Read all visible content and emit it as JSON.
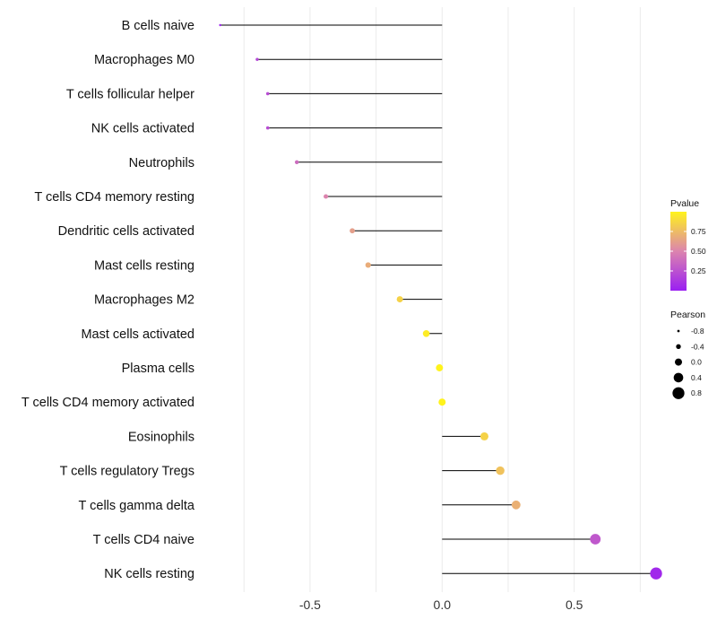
{
  "chart_data": {
    "type": "lollipop",
    "xlabel": "",
    "ylabel": "",
    "xlim": [
      -0.9,
      0.82
    ],
    "x_ticks": [
      -0.5,
      0.0,
      0.5
    ],
    "x_tick_labels": [
      "-0.5",
      "0.0",
      "0.5"
    ],
    "categories": [
      "B cells naive",
      "Macrophages M0",
      "T cells follicular helper",
      "NK cells activated",
      "Neutrophils",
      "T cells CD4 memory resting",
      "Dendritic cells activated",
      "Mast cells resting",
      "Macrophages M2",
      "Mast cells activated",
      "Plasma cells",
      "T cells CD4 memory activated",
      "Eosinophils",
      "T cells regulatory  Tregs ",
      "T cells gamma delta",
      "T cells CD4 naive",
      "NK cells resting"
    ],
    "pearson": [
      -0.84,
      -0.7,
      -0.66,
      -0.66,
      -0.55,
      -0.44,
      -0.34,
      -0.28,
      -0.16,
      -0.06,
      -0.01,
      0.0,
      0.16,
      0.22,
      0.28,
      0.58,
      0.81
    ],
    "pvalue": [
      0.02,
      0.2,
      0.23,
      0.23,
      0.38,
      0.5,
      0.62,
      0.68,
      0.85,
      0.97,
      1.0,
      1.0,
      0.85,
      0.78,
      0.7,
      0.28,
      0.05
    ],
    "legend_pvalue": {
      "title": "Pvalue",
      "ticks": [
        0.25,
        0.5,
        0.75
      ],
      "tick_labels": [
        "0.25",
        "0.50",
        "0.75"
      ],
      "range": [
        0.0,
        1.0
      ],
      "color_low": "#9a1ff2",
      "color_mid": "#dc84ae",
      "color_high": "#fff31c"
    },
    "legend_pearson": {
      "title": "Pearson",
      "values": [
        -0.8,
        -0.4,
        0.0,
        0.4,
        0.8
      ],
      "labels": [
        "-0.8",
        "-0.4",
        "0.0",
        "0.4",
        "0.8"
      ]
    }
  }
}
